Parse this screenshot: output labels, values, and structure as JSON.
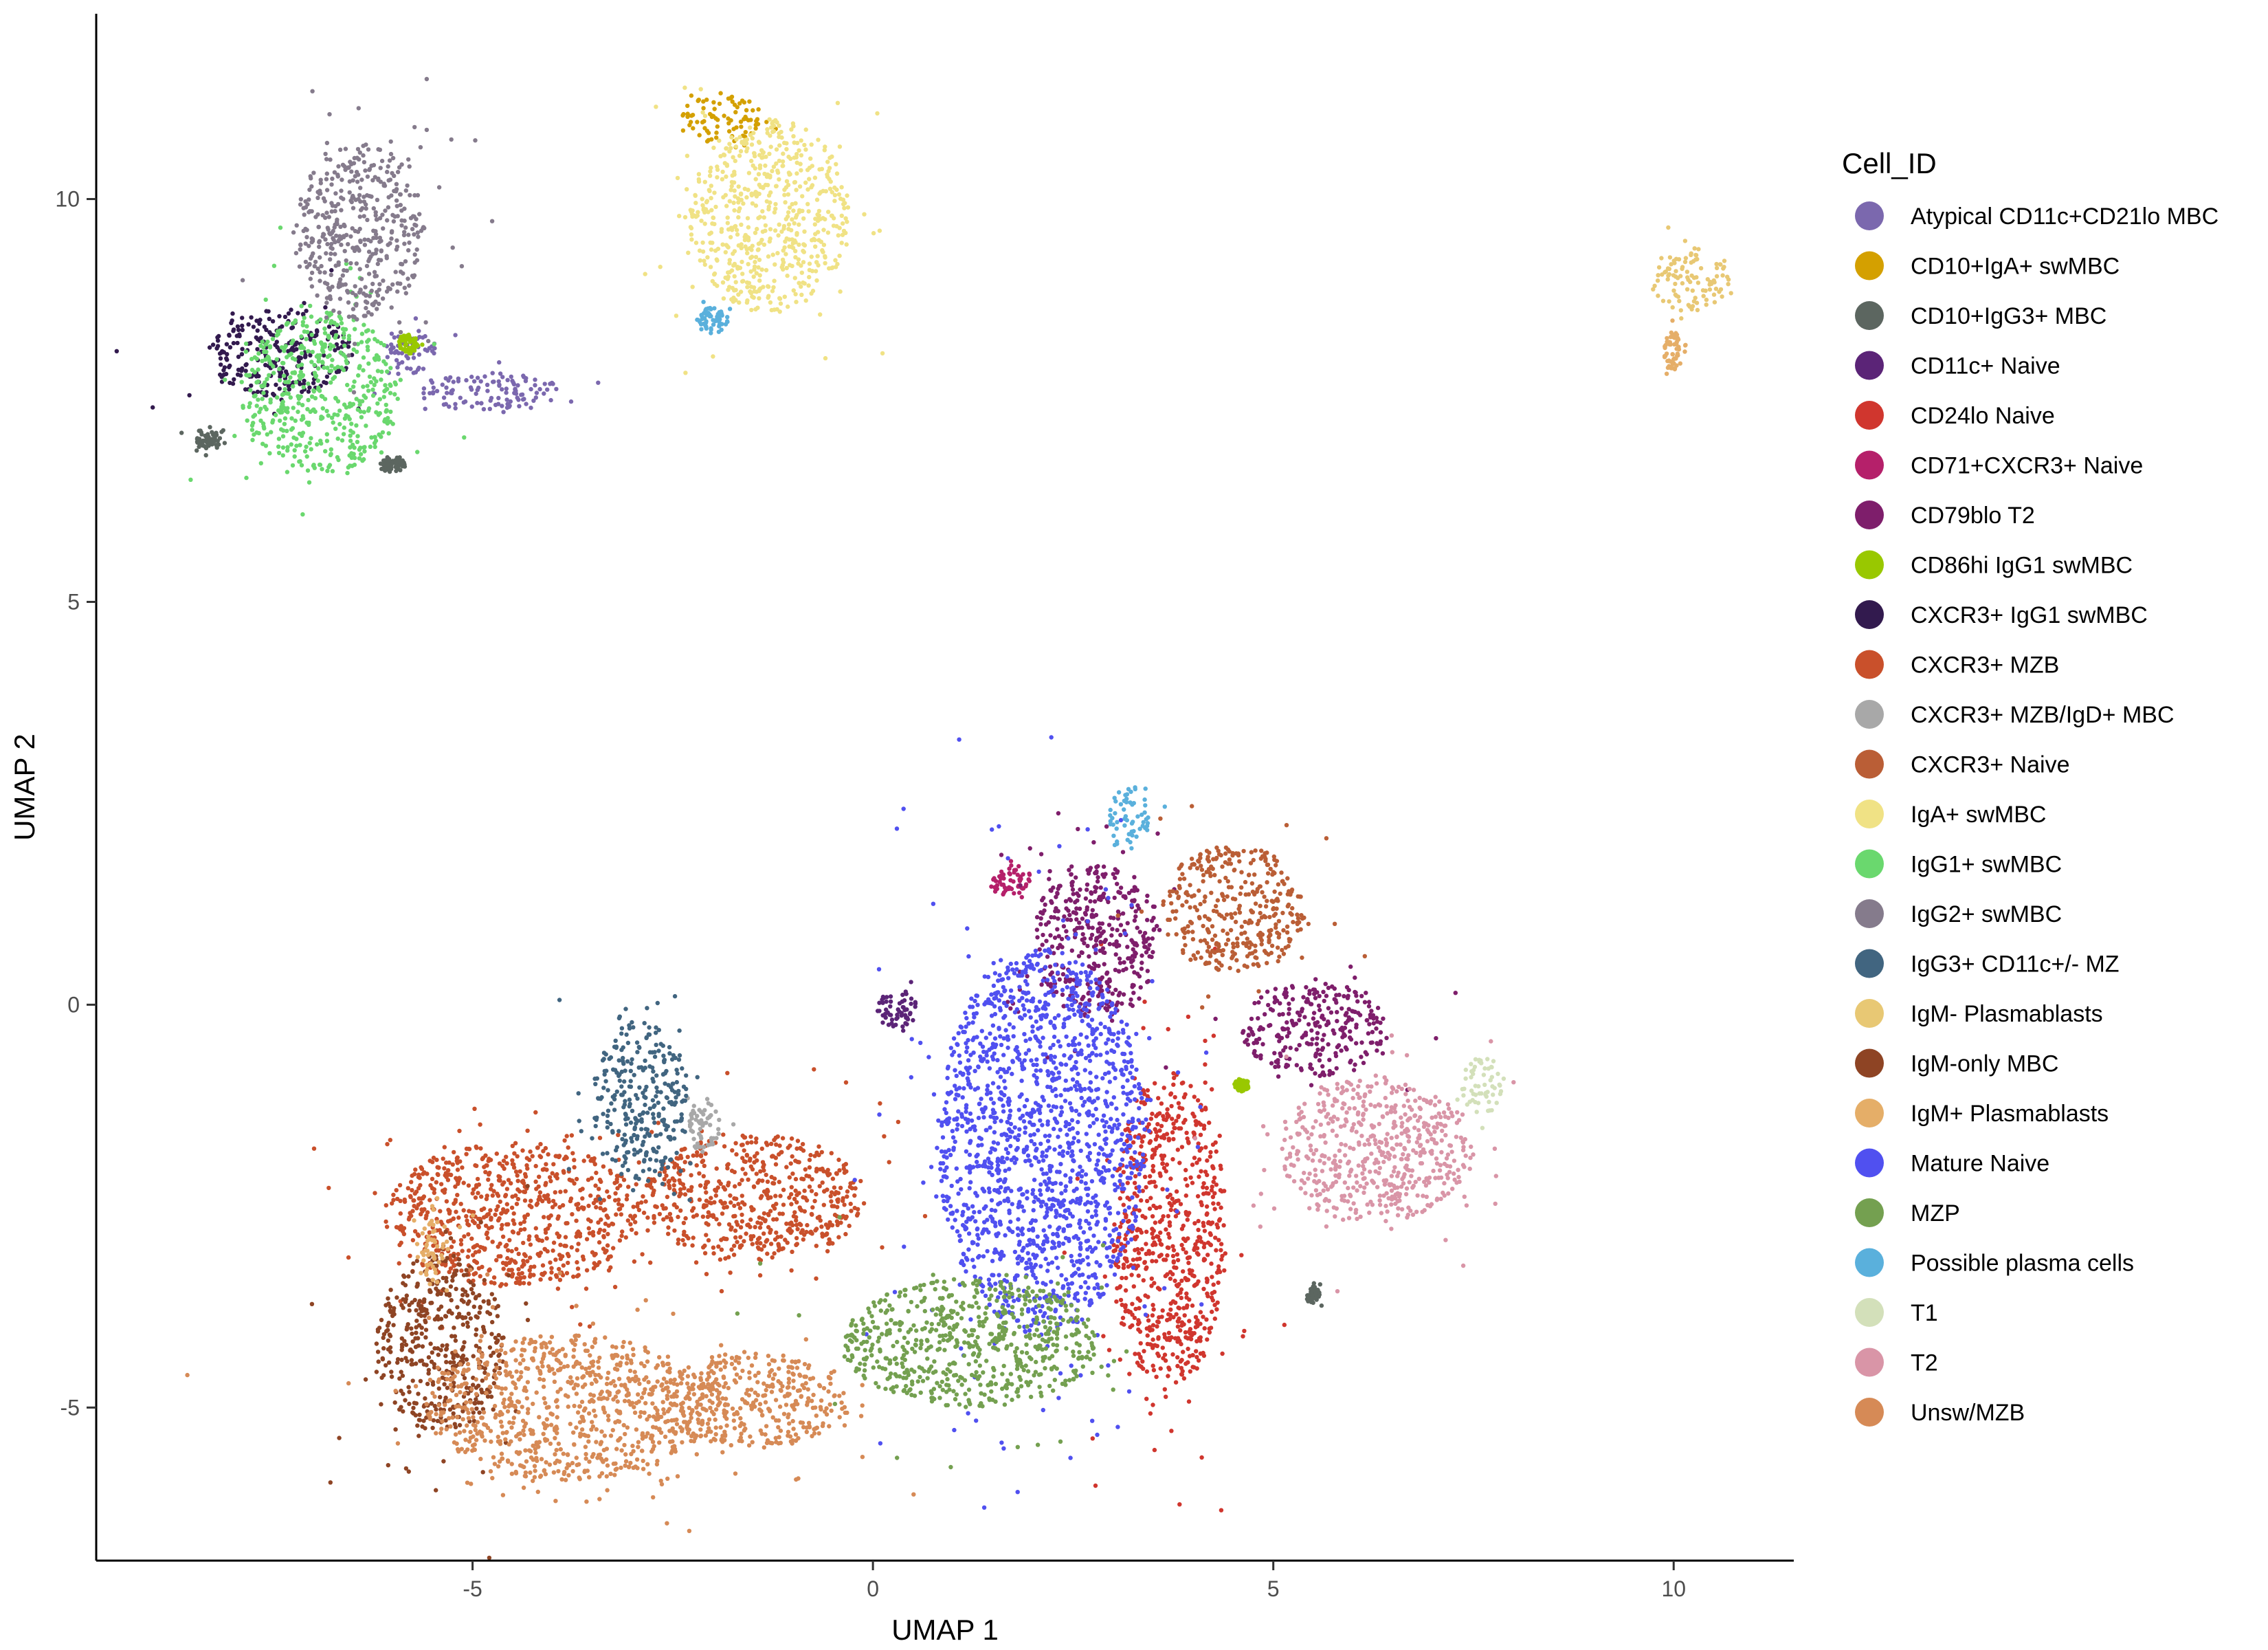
{
  "chart_data": {
    "type": "scatter",
    "title": "",
    "xlabel": "UMAP 1",
    "ylabel": "UMAP 2",
    "xlim": [
      -9.7,
      11.5
    ],
    "ylim": [
      -6.9,
      12.3
    ],
    "xticks": [
      -5,
      0,
      5,
      10
    ],
    "yticks": [
      -5,
      0,
      5,
      10
    ],
    "xtick_labels": [
      "-5",
      "0",
      "5",
      "10"
    ],
    "ytick_labels": [
      "-5",
      "0",
      "5",
      "10"
    ],
    "grid": false,
    "legend_position": "right",
    "legend_title": "Cell_ID",
    "series": [
      {
        "name": "Atypical CD11c+CD21lo MBC",
        "color": "#7B68AE",
        "clusters": [
          [
            -4.8,
            7.6,
            0.9,
            0.25
          ],
          [
            -5.8,
            8.1,
            0.35,
            0.3
          ]
        ]
      },
      {
        "name": "CD10+IgA+ swMBC",
        "color": "#D4A000",
        "clusters": [
          [
            -1.9,
            11.0,
            0.55,
            0.3
          ]
        ]
      },
      {
        "name": "CD10+IgG3+ MBC",
        "color": "#5C6660",
        "clusters": [
          [
            -6.0,
            6.7,
            0.15,
            0.12
          ],
          [
            -8.3,
            7.0,
            0.15,
            0.12
          ],
          [
            5.5,
            -3.6,
            0.08,
            0.1
          ]
        ]
      },
      {
        "name": "CD11c+ Naive",
        "color": "#5B2477",
        "clusters": [
          [
            0.3,
            -0.05,
            0.25,
            0.25
          ]
        ]
      },
      {
        "name": "CD24lo Naive",
        "color": "#D0362E",
        "clusters": [
          [
            3.7,
            -2.8,
            0.7,
            2.0
          ]
        ]
      },
      {
        "name": "CD71+CXCR3+ Naive",
        "color": "#B5206A",
        "clusters": [
          [
            1.7,
            1.55,
            0.25,
            0.2
          ]
        ]
      },
      {
        "name": "CD79blo T2",
        "color": "#7E1E6B",
        "clusters": [
          [
            2.8,
            0.8,
            0.8,
            1.0
          ],
          [
            5.5,
            -0.3,
            0.9,
            0.6
          ]
        ]
      },
      {
        "name": "CD86hi IgG1 swMBC",
        "color": "#99C800",
        "clusters": [
          [
            -5.8,
            8.2,
            0.12,
            0.12
          ],
          [
            4.6,
            -1.0,
            0.1,
            0.08
          ]
        ]
      },
      {
        "name": "CXCR3+ IgG1 swMBC",
        "color": "#321A4E",
        "clusters": [
          [
            -7.4,
            8.1,
            0.9,
            0.55
          ]
        ]
      },
      {
        "name": "CXCR3+ MZB",
        "color": "#C9502B",
        "clusters": [
          [
            -4.5,
            -2.6,
            1.6,
            0.9
          ],
          [
            -1.5,
            -2.4,
            1.4,
            0.8
          ]
        ]
      },
      {
        "name": "CXCR3+ MZB/IgD+ MBC",
        "color": "#A8A8A8",
        "clusters": [
          [
            -2.1,
            -1.5,
            0.2,
            0.35
          ]
        ]
      },
      {
        "name": "CXCR3+ Naive",
        "color": "#BA5E36",
        "clusters": [
          [
            4.5,
            1.2,
            0.9,
            0.8
          ]
        ]
      },
      {
        "name": "IgA+ swMBC",
        "color": "#F0E285",
        "clusters": [
          [
            -1.3,
            9.8,
            1.0,
            1.2
          ]
        ]
      },
      {
        "name": "IgG1+ swMBC",
        "color": "#6AD86E",
        "clusters": [
          [
            -6.9,
            7.6,
            1.0,
            1.0
          ]
        ]
      },
      {
        "name": "IgG2+ swMBC",
        "color": "#857B8C",
        "clusters": [
          [
            -6.4,
            9.6,
            0.8,
            1.1
          ]
        ]
      },
      {
        "name": "IgG3+ CD11c+/- MZ",
        "color": "#416580",
        "clusters": [
          [
            -2.9,
            -1.2,
            0.6,
            1.0
          ]
        ]
      },
      {
        "name": "IgM- Plasmablasts",
        "color": "#E8C874",
        "clusters": [
          [
            10.2,
            9.0,
            0.5,
            0.4
          ]
        ]
      },
      {
        "name": "IgM-only MBC",
        "color": "#8E4424",
        "clusters": [
          [
            -5.4,
            -4.2,
            0.8,
            1.1
          ]
        ]
      },
      {
        "name": "IgM+ Plasmablasts",
        "color": "#E5AE68",
        "clusters": [
          [
            10.0,
            8.1,
            0.12,
            0.25
          ],
          [
            -5.5,
            -3.0,
            0.2,
            0.5
          ]
        ]
      },
      {
        "name": "Mature Naive",
        "color": "#5050F0",
        "clusters": [
          [
            2.1,
            -1.7,
            1.3,
            2.4
          ]
        ]
      },
      {
        "name": "MZP",
        "color": "#74A050",
        "clusters": [
          [
            1.2,
            -4.2,
            1.6,
            0.8
          ]
        ]
      },
      {
        "name": "Possible plasma cells",
        "color": "#5AB0DC",
        "clusters": [
          [
            3.2,
            2.3,
            0.25,
            0.4
          ],
          [
            -2.0,
            8.5,
            0.2,
            0.15
          ]
        ]
      },
      {
        "name": "T1",
        "color": "#D3E0BA",
        "clusters": [
          [
            7.6,
            -1.0,
            0.25,
            0.35
          ]
        ]
      },
      {
        "name": "T2",
        "color": "#D995A7",
        "clusters": [
          [
            6.3,
            -1.8,
            1.2,
            0.9
          ]
        ]
      },
      {
        "name": "Unsw/MZB",
        "color": "#D68A56",
        "clusters": [
          [
            -3.8,
            -5.0,
            1.8,
            0.9
          ],
          [
            -1.5,
            -4.9,
            1.2,
            0.6
          ]
        ]
      }
    ]
  }
}
